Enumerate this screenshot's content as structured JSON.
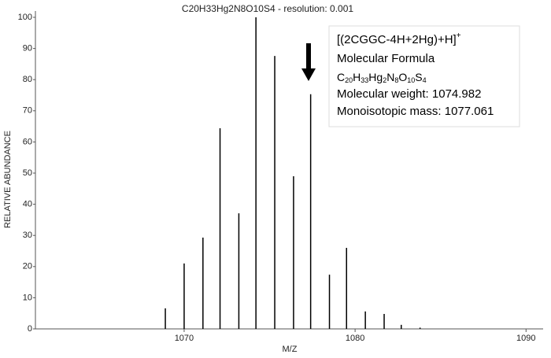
{
  "chart_data": {
    "type": "stem",
    "title": "C20H33Hg2N8O10S4 - resolution: 0.001",
    "x_label": "M/Z",
    "y_label": "RELATIVE ABUNDANCE",
    "x": [
      1068.9,
      1070.0,
      1071.1,
      1072.1,
      1073.2,
      1074.2,
      1075.3,
      1076.4,
      1077.4,
      1078.5,
      1079.5,
      1080.6,
      1081.7,
      1082.7,
      1083.8
    ],
    "values": [
      6.6,
      21,
      29.3,
      64.4,
      37.1,
      100,
      87.6,
      49,
      75.3,
      17.4,
      26,
      5.6,
      4.8,
      1.3,
      0.4
    ],
    "color": "#000000",
    "xlim": [
      1061.3,
      1091.0
    ],
    "xticks": [
      1070,
      1080,
      1090
    ],
    "ylim": [
      0,
      100
    ],
    "yticks": [
      0,
      10,
      20,
      30,
      40,
      50,
      60,
      70,
      80,
      90,
      100
    ],
    "annotation": {
      "ion": "[(2CGGC-4H+2Hg)+H]",
      "ion_charge": "+",
      "formula_label": "Molecular Formula",
      "formula_parts": [
        "C",
        "20",
        "H",
        "33",
        "Hg",
        "2",
        "N",
        "8",
        "O",
        "10",
        "S",
        "4"
      ],
      "weight": "Molecular weight:  1074.982",
      "mono": "Monoisotopic mass: 1077.061"
    }
  }
}
